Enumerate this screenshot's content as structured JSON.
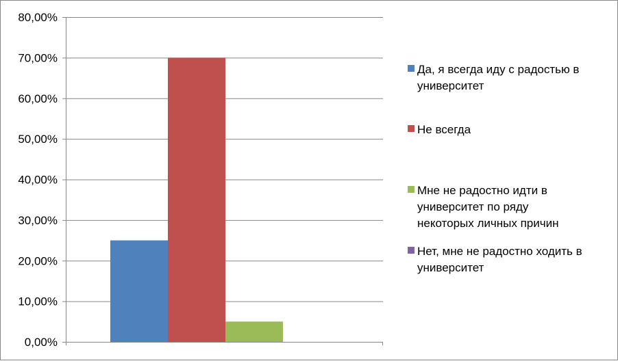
{
  "chart_data": {
    "type": "bar",
    "categories": [
      ""
    ],
    "series": [
      {
        "name": "Да,  я всегда иду с радостью в университет",
        "values": [
          25
        ],
        "color": "#4F81BD"
      },
      {
        "name": "Не всегда",
        "values": [
          70
        ],
        "color": "#C0504D"
      },
      {
        "name": "Мне не радостно идти в университет по ряду некоторых личных причин",
        "values": [
          5
        ],
        "color": "#9BBB59"
      },
      {
        "name": "Нет, мне не радостно ходить в университет",
        "values": [
          0
        ],
        "color": "#8064A2"
      }
    ],
    "ylim": [
      0,
      80
    ],
    "yticks": [
      0,
      10,
      20,
      30,
      40,
      50,
      60,
      70,
      80
    ],
    "ytick_labels": [
      "0,00%",
      "10,00%",
      "20,00%",
      "30,00%",
      "40,00%",
      "50,00%",
      "60,00%",
      "70,00%",
      "80,00%"
    ],
    "grid": true,
    "legend_position": "right"
  },
  "legend": {
    "items": [
      {
        "lines": [
          "Да,  я всегда иду с радостью в",
          "университет"
        ]
      },
      {
        "lines": [
          "Не всегда"
        ]
      },
      {
        "lines": [
          "Мне не радостно идти в",
          "университет по ряду",
          "некоторых личных причин"
        ]
      },
      {
        "lines": [
          "Нет, мне не радостно ходить в",
          "университет"
        ]
      }
    ]
  }
}
